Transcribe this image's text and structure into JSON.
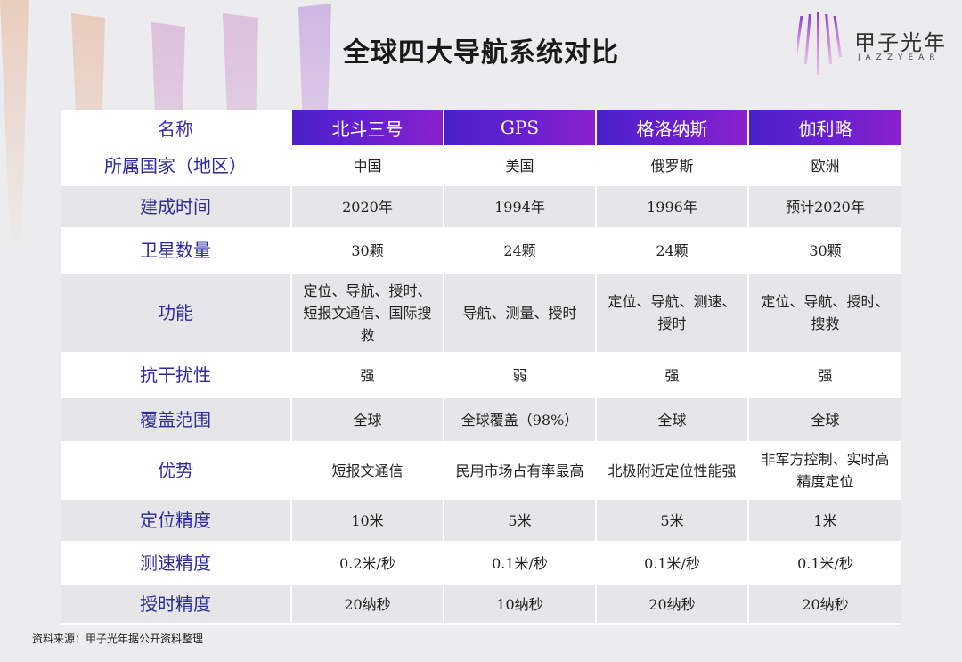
{
  "title": "全球四大导航系统对比",
  "logo": {
    "cn": "甲子光年",
    "en": "JAZZYEAR"
  },
  "colors": {
    "header_gradient_start": "#4a21c9",
    "header_gradient_end": "#8a22cc",
    "row_label": "#2e2a9e"
  },
  "table": {
    "headers": [
      "名称",
      "北斗三号",
      "GPS",
      "格洛纳斯",
      "伽利略"
    ],
    "rows": [
      {
        "label": "所属国家（地区）",
        "cells": [
          "中国",
          "美国",
          "俄罗斯",
          "欧洲"
        ]
      },
      {
        "label": "建成时间",
        "cells": [
          "2020年",
          "1994年",
          "1996年",
          "预计2020年"
        ]
      },
      {
        "label": "卫星数量",
        "cells": [
          "30颗",
          "24颗",
          "24颗",
          "30颗"
        ]
      },
      {
        "label": "功能",
        "cells": [
          "定位、导航、授时、短报文通信、国际搜救",
          "导航、测量、授时",
          "定位、导航、测速、授时",
          "定位、导航、授时、搜救"
        ]
      },
      {
        "label": "抗干扰性",
        "cells": [
          "强",
          "弱",
          "强",
          "强"
        ]
      },
      {
        "label": "覆盖范围",
        "cells": [
          "全球",
          "全球覆盖（98%）",
          "全球",
          "全球"
        ]
      },
      {
        "label": "优势",
        "cells": [
          "短报文通信",
          "民用市场占有率最高",
          "北极附近定位性能强",
          "非军方控制、实时高精度定位"
        ]
      },
      {
        "label": "定位精度",
        "cells": [
          "10米",
          "5米",
          "5米",
          "1米"
        ]
      },
      {
        "label": "测速精度",
        "cells": [
          "0.2米/秒",
          "0.1米/秒",
          "0.1米/秒",
          "0.1米/秒"
        ]
      },
      {
        "label": "授时精度",
        "cells": [
          "20纳秒",
          "10纳秒",
          "20纳秒",
          "20纳秒"
        ]
      }
    ]
  },
  "source": "资料来源：甲子光年据公开资料整理"
}
